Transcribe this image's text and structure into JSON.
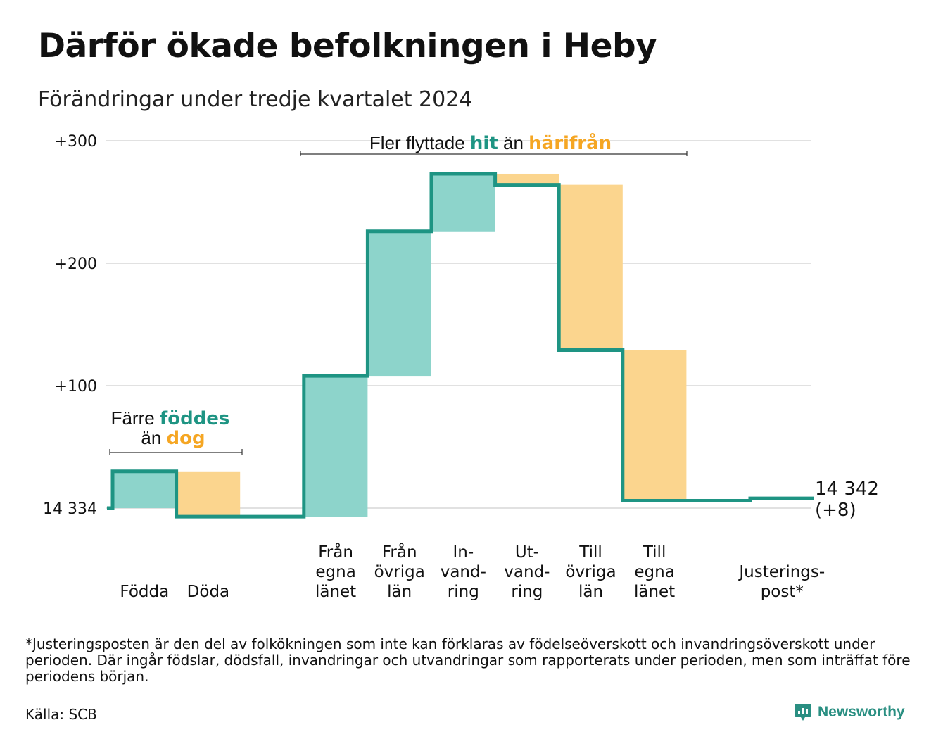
{
  "title": "Därför ökade befolkningen i Heby",
  "subtitle": "Förändringar under tredje kvartalet 2024",
  "chart_data": {
    "type": "waterfall",
    "start_label": "14 334",
    "start_value": 14334,
    "end_label_lines": [
      "14 342",
      "(+8)"
    ],
    "end_value": 14342,
    "y_axis_ticks": [
      {
        "value": 0,
        "label": "14 334"
      },
      {
        "value": 100,
        "label": "+100"
      },
      {
        "value": 200,
        "label": "+200"
      },
      {
        "value": 300,
        "label": "+300"
      }
    ],
    "ylim": [
      -7,
      300
    ],
    "grid": true,
    "colors": {
      "increase": "#8dd4cb",
      "decrease": "#fbd58e",
      "line": "#1e9483",
      "grid": "#e1e1e1"
    },
    "steps": [
      {
        "label_lines": [
          "Födda"
        ],
        "change": 30,
        "kind": "increase"
      },
      {
        "label_lines": [
          "Döda"
        ],
        "change": -37,
        "kind": "decrease"
      },
      {
        "label_lines": [
          ""
        ],
        "change": 0,
        "kind": "none"
      },
      {
        "label_lines": [
          "Från",
          "egna",
          "länet"
        ],
        "change": 115,
        "kind": "increase"
      },
      {
        "label_lines": [
          "Från",
          "övriga",
          "län"
        ],
        "change": 118,
        "kind": "increase"
      },
      {
        "label_lines": [
          "In-",
          "vand-",
          "ring"
        ],
        "change": 47,
        "kind": "increase"
      },
      {
        "label_lines": [
          "Ut-",
          "vand-",
          "ring"
        ],
        "change": -9,
        "kind": "decrease"
      },
      {
        "label_lines": [
          "Till",
          "övriga",
          "län"
        ],
        "change": -135,
        "kind": "decrease"
      },
      {
        "label_lines": [
          "Till",
          "egna",
          "länet"
        ],
        "change": -123,
        "kind": "decrease"
      },
      {
        "label_lines": [
          ""
        ],
        "change": 0,
        "kind": "none"
      },
      {
        "label_lines": [
          "Justerings-",
          "post*"
        ],
        "change": 2,
        "kind": "adjustment"
      }
    ],
    "annotations": {
      "births": {
        "line1_prefix": "Färre ",
        "line1_highlight": "föddes",
        "line2_prefix": "än ",
        "line2_highlight": "dog"
      },
      "migration": {
        "prefix": "Fler flyttade ",
        "highlight1": "hit",
        "middle": " än ",
        "highlight2": "härifrån"
      },
      "highlight_colors": {
        "teal": "#1e9483",
        "orange": "#f5a623"
      }
    }
  },
  "footnote": "*Justeringsposten är den del av folkökningen som inte kan förklaras av födelseöverskott och invandringsöverskott under perioden. Där ingår födslar, dödsfall, invandringar och utvandringar som rapporterats under perioden, men som inträffat före periodens början.",
  "source": "Källa: SCB",
  "brand": "Newsworthy"
}
